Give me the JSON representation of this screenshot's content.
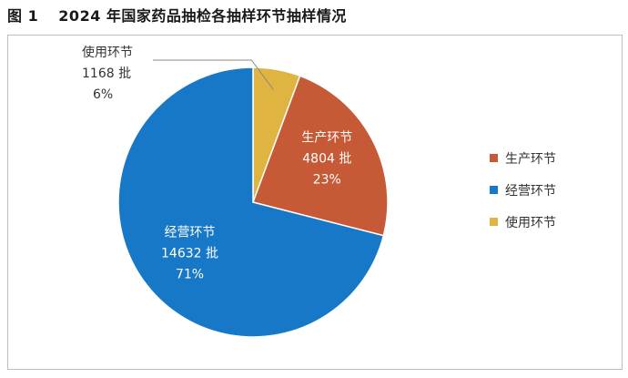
{
  "figure_label": "图 1",
  "title": "2024 年国家药品抽检各抽样环节抽样情况",
  "chart_data": {
    "type": "pie",
    "title": "2024 年国家药品抽检各抽样环节抽样情况",
    "legend_position": "right",
    "slices": [
      {
        "name": "使用环节",
        "value": 1168,
        "value_label": "1168 批",
        "percent": 6,
        "percent_label": "6%",
        "color": "#E0B441"
      },
      {
        "name": "生产环节",
        "value": 4804,
        "value_label": "4804 批",
        "percent": 23,
        "percent_label": "23%",
        "color": "#C65A37"
      },
      {
        "name": "经营环节",
        "value": 14632,
        "value_label": "14632 批",
        "percent": 71,
        "percent_label": "71%",
        "color": "#1778C8"
      }
    ],
    "legend": [
      {
        "name": "生产环节",
        "color": "#C65A37"
      },
      {
        "name": "经营环节",
        "color": "#1778C8"
      },
      {
        "name": "使用环节",
        "color": "#E0B441"
      }
    ]
  }
}
